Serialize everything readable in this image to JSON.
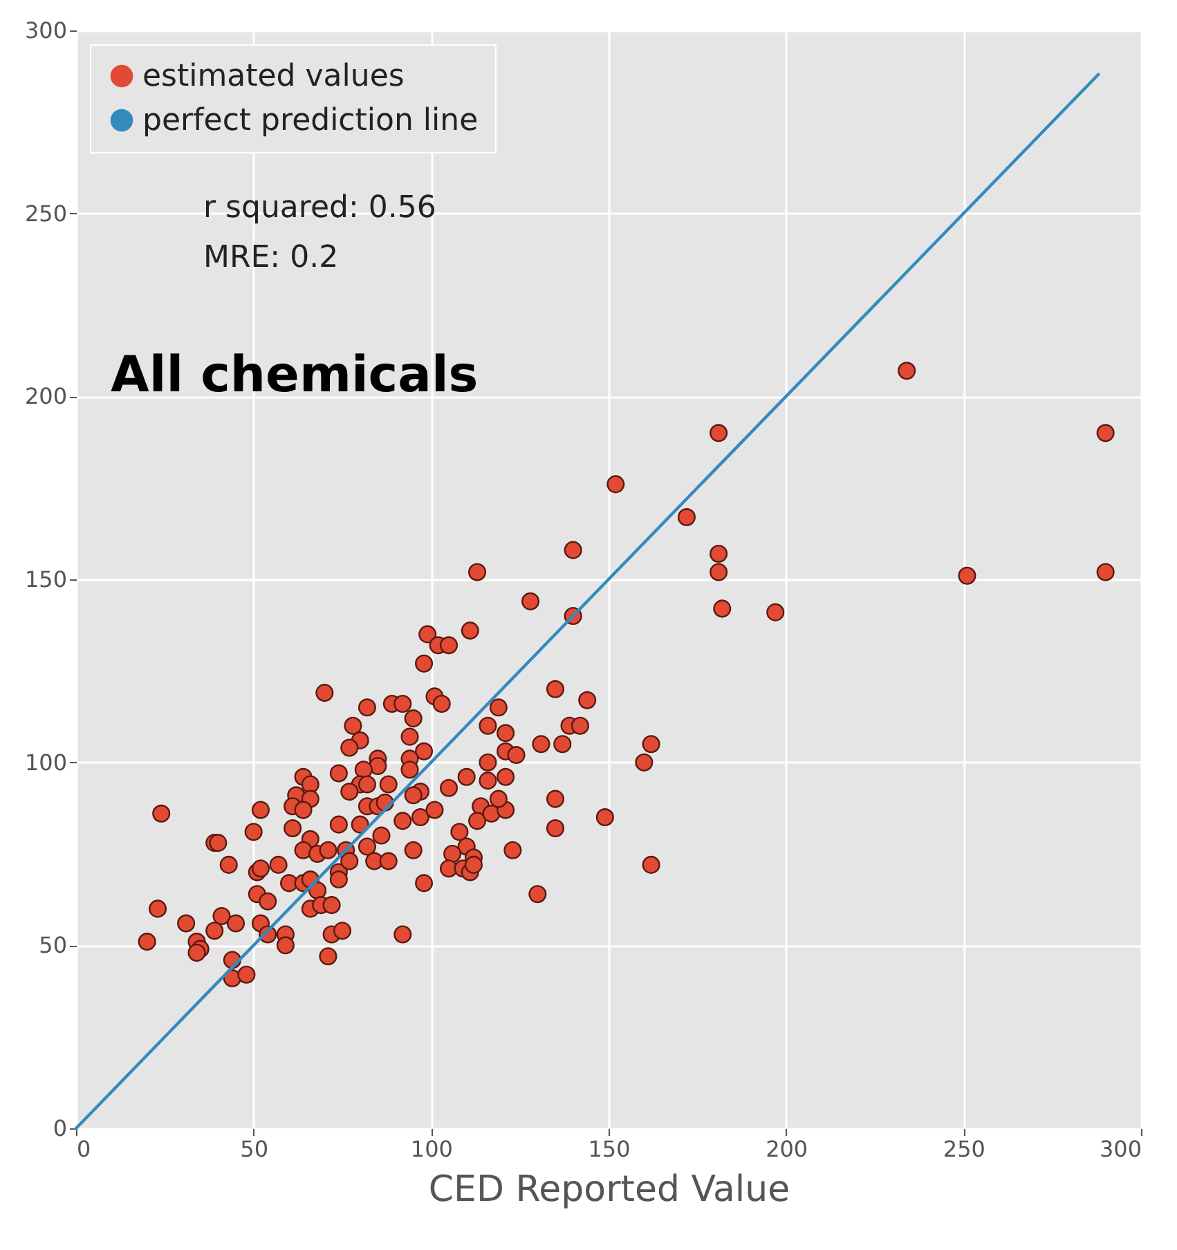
{
  "chart_data": {
    "type": "scatter",
    "xlabel": "CED Reported Value",
    "xlim": [
      0,
      300
    ],
    "ylim": [
      0,
      300
    ],
    "xticks": [
      0,
      50,
      100,
      150,
      200,
      250,
      300
    ],
    "yticks": [
      0,
      50,
      100,
      150,
      200,
      250,
      300
    ],
    "grid": true,
    "legend": "top left",
    "annotations": [
      "r squared: 0.56",
      "MRE: 0.2",
      "All chemicals"
    ],
    "series": [
      {
        "name": "estimated values",
        "marker": "circle",
        "color": "#e24a33",
        "x": [
          70,
          24,
          23,
          20,
          31,
          39,
          40,
          43,
          50,
          52,
          41,
          39,
          45,
          34,
          35,
          34,
          44,
          44,
          48,
          51,
          52,
          51,
          54,
          52,
          54,
          57,
          59,
          59,
          71,
          64,
          66,
          62,
          66,
          61,
          64,
          74,
          61,
          66,
          64,
          68,
          71,
          74,
          60,
          64,
          66,
          68,
          66,
          69,
          72,
          74,
          74,
          72,
          75,
          152,
          172,
          140,
          113,
          128,
          140,
          111,
          99,
          102,
          105,
          98,
          82,
          89,
          92,
          101,
          103,
          95,
          78,
          80,
          77,
          94,
          98,
          85,
          85,
          94,
          94,
          81,
          80,
          82,
          77,
          88,
          97,
          95,
          105,
          110,
          116,
          116,
          121,
          119,
          116,
          121,
          121,
          124,
          135,
          144,
          139,
          142,
          131,
          137,
          162,
          160,
          82,
          85,
          87,
          80,
          86,
          82,
          92,
          97,
          101,
          76,
          77,
          84,
          88,
          95,
          98,
          92,
          108,
          110,
          106,
          112,
          105,
          109,
          111,
          112,
          114,
          113,
          117,
          121,
          119,
          135,
          135,
          149,
          123,
          162,
          130,
          234,
          181,
          290,
          181,
          181,
          182,
          197,
          251,
          290
        ],
        "values": [
          119,
          86,
          60,
          51,
          56,
          78,
          78,
          72,
          81,
          87,
          58,
          54,
          56,
          51,
          49,
          48,
          46,
          41,
          42,
          70,
          71,
          64,
          62,
          56,
          53,
          72,
          53,
          50,
          47,
          96,
          94,
          91,
          90,
          88,
          87,
          97,
          82,
          79,
          76,
          75,
          76,
          83,
          67,
          67,
          68,
          65,
          60,
          61,
          61,
          70,
          68,
          53,
          54,
          176,
          167,
          158,
          152,
          144,
          140,
          136,
          135,
          132,
          132,
          127,
          115,
          116,
          116,
          118,
          116,
          112,
          110,
          106,
          104,
          107,
          103,
          101,
          99,
          101,
          98,
          98,
          94,
          94,
          92,
          94,
          92,
          91,
          93,
          96,
          100,
          95,
          96,
          115,
          110,
          108,
          103,
          102,
          120,
          117,
          110,
          110,
          105,
          105,
          105,
          100,
          88,
          88,
          89,
          83,
          80,
          77,
          84,
          85,
          87,
          76,
          73,
          73,
          73,
          76,
          67,
          53,
          81,
          77,
          75,
          74,
          71,
          71,
          70,
          72,
          88,
          84,
          86,
          87,
          90,
          90,
          82,
          85,
          76,
          72,
          64,
          207,
          190,
          190,
          157,
          152,
          142,
          141,
          151,
          152
        ]
      },
      {
        "name": "perfect prediction line",
        "type": "line",
        "color": "#348abd",
        "x": [
          0,
          288
        ],
        "values": [
          0,
          288
        ]
      }
    ]
  }
}
